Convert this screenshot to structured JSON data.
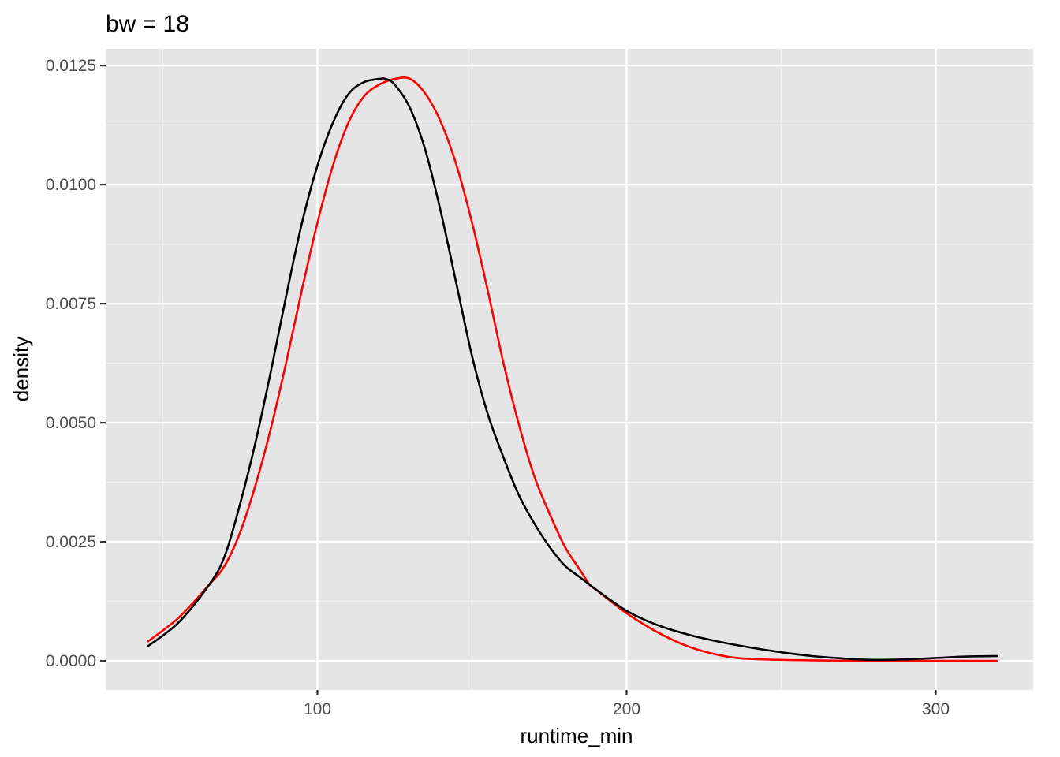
{
  "chart_data": {
    "type": "line",
    "title": "bw = 18",
    "xlabel": "runtime_min",
    "ylabel": "density",
    "xlim": [
      31.5,
      331.5
    ],
    "ylim": [
      -0.000612,
      0.01285
    ],
    "x_ticks": [
      100,
      200,
      300
    ],
    "x_tick_labels": [
      "100",
      "200",
      "300"
    ],
    "x_minor_ticks": [
      50,
      150,
      250
    ],
    "y_ticks": [
      0.0,
      0.0025,
      0.005,
      0.0075,
      0.01,
      0.0125
    ],
    "y_tick_labels": [
      "0.0000",
      "0.0025",
      "0.0050",
      "0.0075",
      "0.0100",
      "0.0125"
    ],
    "y_minor_ticks": [
      0.00125,
      0.00375,
      0.00625,
      0.00875,
      0.01125
    ],
    "grid": true,
    "legend": "none",
    "series": [
      {
        "color": "#000000",
        "x": [
          45,
          55,
          65,
          70,
          75,
          80,
          85,
          90,
          95,
          100,
          105,
          110,
          115,
          120,
          122,
          125,
          130,
          135,
          140,
          145,
          150,
          155,
          160,
          165,
          170,
          175,
          180,
          185,
          188,
          190,
          200,
          210,
          220,
          230,
          240,
          250,
          260,
          270,
          280,
          290,
          300,
          310,
          320
        ],
        "y": [
          0.0003,
          0.0008,
          0.0016,
          0.0022,
          0.0033,
          0.0046,
          0.0061,
          0.0077,
          0.0092,
          0.0104,
          0.0113,
          0.0119,
          0.01215,
          0.01222,
          0.01222,
          0.0121,
          0.0116,
          0.0107,
          0.0094,
          0.0079,
          0.0064,
          0.0052,
          0.0043,
          0.0035,
          0.0029,
          0.0024,
          0.002,
          0.00175,
          0.0016,
          0.0015,
          0.00105,
          0.00075,
          0.00055,
          0.0004,
          0.00028,
          0.00018,
          0.0001,
          5e-05,
          2e-05,
          3e-05,
          6e-05,
          9e-05,
          0.0001
        ]
      },
      {
        "color": "#ff0000",
        "x": [
          45,
          55,
          65,
          70,
          75,
          80,
          85,
          90,
          95,
          100,
          105,
          110,
          115,
          120,
          125,
          130,
          135,
          140,
          145,
          150,
          155,
          160,
          165,
          170,
          175,
          180,
          185,
          188,
          190,
          200,
          210,
          220,
          230,
          240,
          260,
          280,
          300,
          320
        ],
        "y": [
          0.0004,
          0.0009,
          0.0016,
          0.002,
          0.0027,
          0.0037,
          0.0049,
          0.0063,
          0.0078,
          0.0092,
          0.0104,
          0.0113,
          0.01185,
          0.0121,
          0.01222,
          0.01222,
          0.0119,
          0.0113,
          0.0104,
          0.0092,
          0.0078,
          0.0063,
          0.005,
          0.0039,
          0.0031,
          0.0024,
          0.0019,
          0.0016,
          0.0015,
          0.001,
          0.0006,
          0.0003,
          0.00012,
          4e-05,
          1e-05,
          0.0,
          0.0,
          0.0
        ]
      }
    ]
  }
}
